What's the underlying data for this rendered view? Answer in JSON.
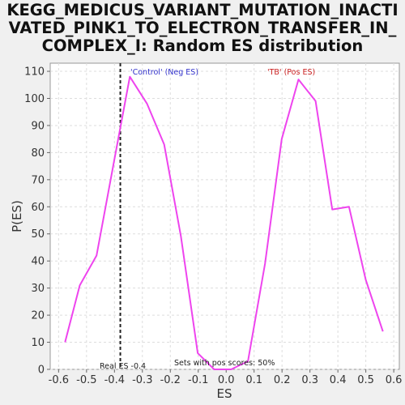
{
  "chart_data": {
    "type": "line",
    "title_lines": [
      "KEGG_MEDICUS_VARIANT_MUTATION_INACTI",
      "VATED_PINK1_TO_ELECTRON_TRANSFER_IN_",
      "COMPLEX_I: Random ES distribution"
    ],
    "xlabel": "ES",
    "ylabel": "P(ES)",
    "xlim": [
      -0.63,
      0.62
    ],
    "ylim": [
      0,
      113
    ],
    "x_ticks": [
      -0.6,
      -0.5,
      -0.4,
      -0.3,
      -0.2,
      -0.1,
      0.0,
      0.1,
      0.2,
      0.3,
      0.4,
      0.5,
      0.6
    ],
    "x_tick_labels": [
      "-0.6",
      "-0.5",
      "-0.4",
      "-0.3",
      "-0.2",
      "-0.1",
      "0.0",
      "0.1",
      "0.2",
      "0.3",
      "0.4",
      "0.5",
      "0.6"
    ],
    "y_ticks": [
      0,
      10,
      20,
      30,
      40,
      50,
      60,
      70,
      80,
      90,
      100,
      110
    ],
    "y_tick_labels": [
      "0",
      "10",
      "20",
      "30",
      "40",
      "50",
      "60",
      "70",
      "80",
      "90",
      "100",
      "110"
    ],
    "grid": true,
    "series": [
      {
        "color": "#ee44ee",
        "x": [
          -0.577,
          -0.524,
          -0.464,
          -0.403,
          -0.345,
          -0.283,
          -0.222,
          -0.162,
          -0.102,
          -0.043,
          0.018,
          0.078,
          0.139,
          0.199,
          0.259,
          0.32,
          0.38,
          0.44,
          0.5,
          0.561
        ],
        "y": [
          10,
          31,
          42,
          76,
          108,
          98,
          83,
          49,
          6,
          0,
          0,
          3,
          39,
          85,
          107,
          99,
          59,
          60,
          33,
          14
        ]
      }
    ],
    "real_es": -0.379,
    "annotations": {
      "neg_label": "'Control' (Neg ES)",
      "pos_label": "'TB' (Pos ES)",
      "real_es_label": "Real ES -0.4",
      "pos_scores_label": "Sets with pos scores: 50%",
      "neg_color": "#3333cc",
      "pos_color": "#cc2222"
    }
  }
}
